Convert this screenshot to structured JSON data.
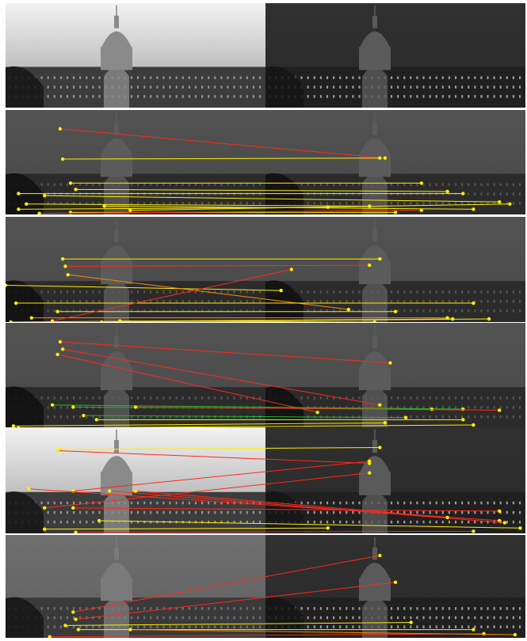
{
  "figure": {
    "rows": [
      {
        "key": "r0",
        "left_tone": "light",
        "right_tone": "dark",
        "overlay": false,
        "matches": []
      },
      {
        "key": "r1",
        "left_tone": "dim",
        "right_tone": "dim",
        "overlay": true,
        "matches": [
          {
            "a": [
              0.21,
              0.18
            ],
            "b": [
              0.73,
              0.46
            ],
            "color": "#ff2a1a"
          },
          {
            "a": [
              0.22,
              0.47
            ],
            "b": [
              0.72,
              0.46
            ],
            "color": "#ffee00"
          },
          {
            "a": [
              0.25,
              0.7
            ],
            "b": [
              0.8,
              0.7
            ],
            "color": "#ffee00"
          },
          {
            "a": [
              0.27,
              0.76
            ],
            "b": [
              0.85,
              0.78
            ],
            "color": "#ffee00"
          },
          {
            "a": [
              0.05,
              0.8
            ],
            "b": [
              0.88,
              0.8
            ],
            "color": "#ffee00"
          },
          {
            "a": [
              0.15,
              0.82
            ],
            "b": [
              0.95,
              0.88
            ],
            "color": "#ffee00"
          },
          {
            "a": [
              0.08,
              0.9
            ],
            "b": [
              0.7,
              0.92
            ],
            "color": "#ffee00"
          },
          {
            "a": [
              0.38,
              0.92
            ],
            "b": [
              0.9,
              0.95
            ],
            "color": "#ffee00"
          },
          {
            "a": [
              0.05,
              0.95
            ],
            "b": [
              0.62,
              0.93
            ],
            "color": "#ffee00"
          },
          {
            "a": [
              0.25,
              0.98
            ],
            "b": [
              0.75,
              0.98
            ],
            "color": "#ffee00"
          },
          {
            "a": [
              0.13,
              0.99
            ],
            "b": [
              0.8,
              0.96
            ],
            "color": "#ff2a1a"
          },
          {
            "a": [
              0.48,
              0.96
            ],
            "b": [
              0.97,
              0.9
            ],
            "color": "#ffee00"
          }
        ]
      },
      {
        "key": "r2",
        "left_tone": "dim",
        "right_tone": "dim",
        "overlay": true,
        "matches": [
          {
            "a": [
              0.22,
              0.4
            ],
            "b": [
              0.72,
              0.4
            ],
            "color": "#ffee00"
          },
          {
            "a": [
              0.23,
              0.47
            ],
            "b": [
              0.7,
              0.46
            ],
            "color": "#ff2a1a"
          },
          {
            "a": [
              0.0,
              0.65
            ],
            "b": [
              0.53,
              0.7
            ],
            "color": "#ffee00"
          },
          {
            "a": [
              0.24,
              0.55
            ],
            "b": [
              0.66,
              0.88
            ],
            "color": "#ff8800"
          },
          {
            "a": [
              0.04,
              0.82
            ],
            "b": [
              0.9,
              0.82
            ],
            "color": "#ffee00"
          },
          {
            "a": [
              0.2,
              0.9
            ],
            "b": [
              0.75,
              0.9
            ],
            "color": "#ffee00"
          },
          {
            "a": [
              0.1,
              0.96
            ],
            "b": [
              0.85,
              0.96
            ],
            "color": "#ff8800"
          },
          {
            "a": [
              0.18,
              0.99
            ],
            "b": [
              0.55,
              0.5
            ],
            "color": "#ff2a1a"
          },
          {
            "a": [
              0.37,
              1.0
            ],
            "b": [
              0.93,
              0.97
            ],
            "color": "#ffee00"
          },
          {
            "a": [
              0.44,
              0.99
            ],
            "b": [
              0.71,
              1.0
            ],
            "color": "#ffee00"
          },
          {
            "a": [
              0.02,
              1.0
            ],
            "b": [
              0.86,
              0.97
            ],
            "color": "#ffee00"
          }
        ]
      },
      {
        "key": "r3",
        "left_tone": "dim",
        "right_tone": "dim",
        "overlay": true,
        "matches": [
          {
            "a": [
              0.21,
              0.18
            ],
            "b": [
              0.74,
              0.38
            ],
            "color": "#ff2a1a"
          },
          {
            "a": [
              0.22,
              0.25
            ],
            "b": [
              0.72,
              0.78
            ],
            "color": "#ff2a1a"
          },
          {
            "a": [
              0.2,
              0.3
            ],
            "b": [
              0.6,
              0.85
            ],
            "color": "#ff2a1a"
          },
          {
            "a": [
              0.18,
              0.78
            ],
            "b": [
              0.88,
              0.82
            ],
            "color": "#22bb22"
          },
          {
            "a": [
              0.26,
              0.8
            ],
            "b": [
              0.82,
              0.82
            ],
            "color": "#22bb22"
          },
          {
            "a": [
              0.3,
              0.88
            ],
            "b": [
              0.77,
              0.9
            ],
            "color": "#22bb22"
          },
          {
            "a": [
              0.35,
              0.92
            ],
            "b": [
              0.88,
              0.92
            ],
            "color": "#ffee00"
          },
          {
            "a": [
              0.03,
              0.98
            ],
            "b": [
              0.73,
              0.95
            ],
            "color": "#ffee00"
          },
          {
            "a": [
              0.05,
              1.0
            ],
            "b": [
              0.9,
              0.97
            ],
            "color": "#ffee00"
          },
          {
            "a": [
              0.5,
              0.8
            ],
            "b": [
              0.95,
              0.83
            ],
            "color": "#ff2a1a"
          }
        ]
      },
      {
        "key": "r4",
        "left_tone": "light",
        "right_tone": "dark",
        "overlay": false,
        "matches": [
          {
            "a": [
              0.21,
              0.21
            ],
            "b": [
              0.72,
              0.19
            ],
            "color": "#ffee00"
          },
          {
            "a": [
              0.2,
              0.22
            ],
            "b": [
              0.7,
              0.34
            ],
            "color": "#ff2a1a"
          },
          {
            "a": [
              0.15,
              0.76
            ],
            "b": [
              0.7,
              0.43
            ],
            "color": "#ff2a1a"
          },
          {
            "a": [
              0.26,
              0.6
            ],
            "b": [
              0.7,
              0.32
            ],
            "color": "#ff2a1a"
          },
          {
            "a": [
              0.09,
              0.58
            ],
            "b": [
              0.95,
              0.88
            ],
            "color": "#ff2a1a"
          },
          {
            "a": [
              0.4,
              0.6
            ],
            "b": [
              0.96,
              0.9
            ],
            "color": "#ff2a1a"
          },
          {
            "a": [
              0.5,
              0.6
            ],
            "b": [
              0.85,
              0.85
            ],
            "color": "#ff2a1a"
          },
          {
            "a": [
              0.26,
              0.76
            ],
            "b": [
              0.95,
              0.79
            ],
            "color": "#ff2a1a"
          },
          {
            "a": [
              0.36,
              0.88
            ],
            "b": [
              0.99,
              0.95
            ],
            "color": "#ffee00"
          },
          {
            "a": [
              0.15,
              0.96
            ],
            "b": [
              0.62,
              0.95
            ],
            "color": "#ffee00"
          },
          {
            "a": [
              0.27,
              0.99
            ],
            "b": [
              0.9,
              0.98
            ],
            "color": "#ff2a1a"
          }
        ]
      },
      {
        "key": "r5",
        "left_tone": "dim",
        "right_tone": "dark",
        "overlay": false,
        "matches": [
          {
            "a": [
              0.26,
              0.75
            ],
            "b": [
              0.72,
              0.2
            ],
            "color": "#ff2a1a"
          },
          {
            "a": [
              0.27,
              0.82
            ],
            "b": [
              0.75,
              0.46
            ],
            "color": "#ff2a1a"
          },
          {
            "a": [
              0.23,
              0.88
            ],
            "b": [
              0.78,
              0.85
            ],
            "color": "#ffee00"
          },
          {
            "a": [
              0.28,
              0.92
            ],
            "b": [
              0.9,
              0.92
            ],
            "color": "#ffee00"
          },
          {
            "a": [
              0.17,
              0.99
            ],
            "b": [
              0.92,
              0.96
            ],
            "color": "#ff2a1a"
          },
          {
            "a": [
              0.48,
              0.92
            ],
            "b": [
              0.98,
              0.97
            ],
            "color": "#ff8800"
          }
        ]
      }
    ]
  }
}
